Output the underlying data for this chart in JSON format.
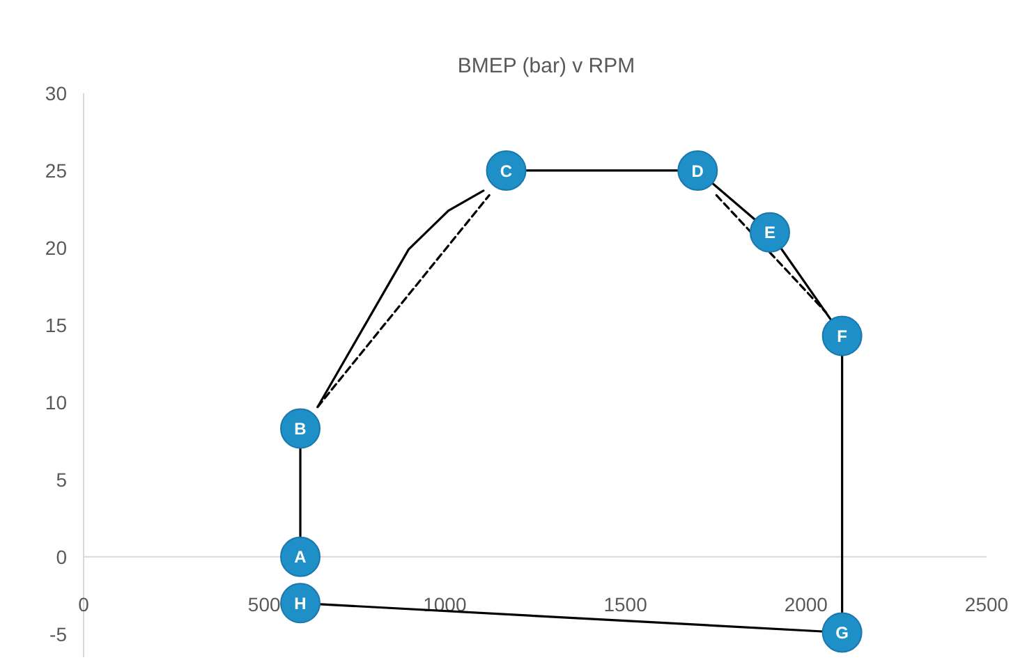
{
  "chart_data": {
    "type": "line",
    "title": "BMEP (bar) v RPM",
    "xlim": [
      0,
      2500
    ],
    "xticks": [
      0,
      500,
      1000,
      1500,
      2000,
      2500
    ],
    "ylim": [
      -6.5,
      30
    ],
    "yticks": [
      -5,
      0,
      5,
      10,
      15,
      20,
      25,
      30
    ],
    "series": [
      {
        "color": "#000000",
        "line_style": "solid",
        "marker": "none",
        "x": [
          648,
          900,
          1010,
          1107
        ],
        "values": [
          9.7,
          19.9,
          22.4,
          23.7
        ]
      },
      {
        "color": "#000000",
        "line_style": "dashed",
        "marker": "none",
        "x": [
          648,
          1123
        ],
        "values": [
          9.7,
          23.4
        ]
      },
      {
        "color": "#000000",
        "line_style": "dashed",
        "marker": "none",
        "x": [
          1752,
          2056
        ],
        "values": [
          23.4,
          15.8
        ]
      },
      {
        "color": "#000000",
        "colors": [
          "#1f8fc8",
          "#1f8fc8"
        ],
        "line_style": "solid",
        "marker": "circle",
        "x": [
          600,
          600
        ],
        "values": [
          0,
          8.3
        ]
      },
      {
        "color": "#000000",
        "colors": [
          "#1f8fc8",
          "#1f8fc8",
          "#1f8fc8",
          "#1f8fc8",
          "#1f8fc8",
          "#1f8fc8"
        ],
        "line_style": "solid",
        "marker": "circle",
        "x": [
          1170,
          1700,
          1900,
          2100,
          2100,
          600
        ],
        "values": [
          25,
          25,
          21,
          14.3,
          -4.9,
          -3
        ]
      }
    ],
    "annotations": [
      {
        "text": "A",
        "x": 600,
        "y": 0
      },
      {
        "text": "B",
        "x": 600,
        "y": 8.3
      },
      {
        "text": "C",
        "x": 1170,
        "y": 25
      },
      {
        "text": "D",
        "x": 1700,
        "y": 25
      },
      {
        "text": "E",
        "x": 1900,
        "y": 21
      },
      {
        "text": "F",
        "x": 2100,
        "y": 14.3
      },
      {
        "text": "G",
        "x": 2100,
        "y": -4.9
      },
      {
        "text": "H",
        "x": 600,
        "y": -3
      }
    ]
  }
}
